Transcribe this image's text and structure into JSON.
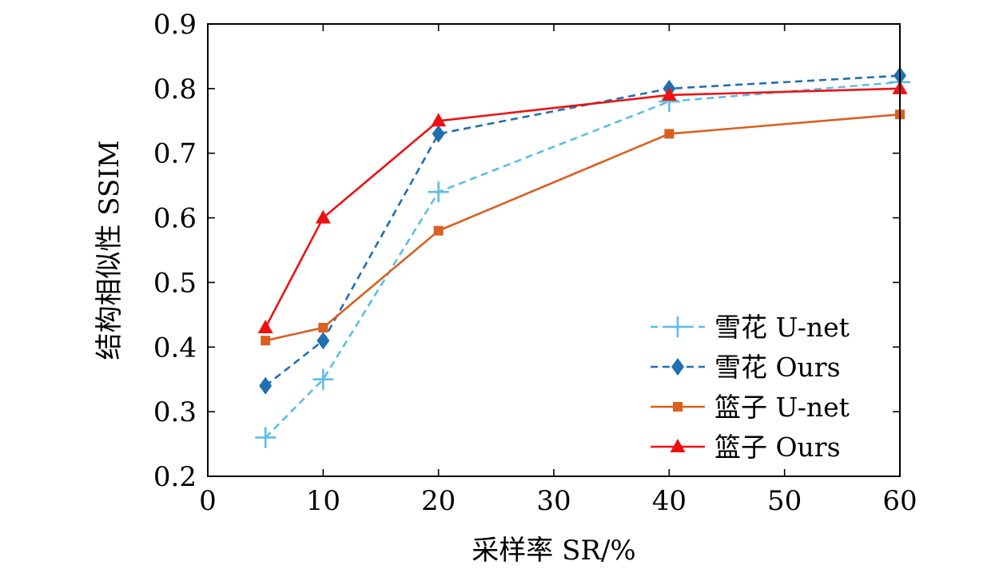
{
  "chart_data": {
    "type": "line",
    "xlabel": "采样率 SR/%",
    "ylabel": "结构相似性 SSIM",
    "xlim": [
      0,
      60
    ],
    "ylim": [
      0.2,
      0.9
    ],
    "xticks": [
      "0",
      "10",
      "20",
      "30",
      "40",
      "50",
      "60"
    ],
    "yticks": [
      "0.2",
      "0.3",
      "0.4",
      "0.5",
      "0.6",
      "0.7",
      "0.8",
      "0.9"
    ],
    "x": [
      5,
      10,
      20,
      40,
      60
    ],
    "grid": false,
    "legend_position": "bottom-right",
    "series": [
      {
        "name": "雪花 U-net",
        "values": [
          0.26,
          0.35,
          0.64,
          0.78,
          0.81
        ],
        "color": "#5bbde6",
        "line_style": "dashed",
        "marker": "plus"
      },
      {
        "name": "雪花 Ours",
        "values": [
          0.34,
          0.41,
          0.73,
          0.8,
          0.82
        ],
        "color": "#1f6fb2",
        "line_style": "dashed",
        "marker": "diamond"
      },
      {
        "name": "篮子 U-net",
        "values": [
          0.41,
          0.43,
          0.58,
          0.73,
          0.76
        ],
        "color": "#d9601f",
        "line_style": "solid",
        "marker": "square"
      },
      {
        "name": "篮子 Ours",
        "values": [
          0.43,
          0.6,
          0.75,
          0.79,
          0.8
        ],
        "color": "#ee1111",
        "line_style": "solid",
        "marker": "triangle"
      }
    ]
  }
}
